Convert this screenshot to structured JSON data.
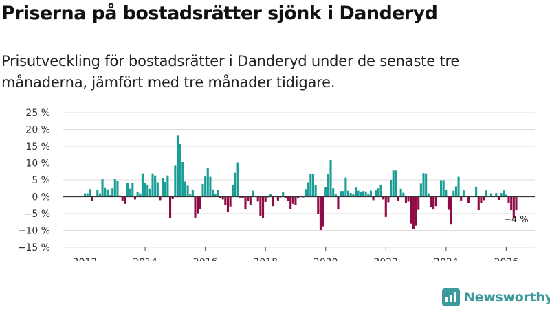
{
  "header": {
    "title": "Priserna på bostadsrätter sjönk i Danderyd",
    "subtitle": "Prisutveckling för bostadsrätter i Danderyd under de senaste tre månaderna, jämfört med tre månader tidigare."
  },
  "brand": {
    "name": "Newsworthy"
  },
  "colors": {
    "positive": "#1a9e96",
    "negative": "#8e0b45",
    "grid": "#dddddd",
    "zero": "#333333",
    "brand": "#3d9a9a"
  },
  "chart_data": {
    "type": "bar",
    "title": "Priserna på bostadsrätter sjönk i Danderyd",
    "xlabel": "",
    "ylabel": "",
    "ylim": [
      -15,
      25
    ],
    "y_ticks": [
      -15,
      -10,
      -5,
      0,
      5,
      10,
      15,
      20,
      25
    ],
    "y_tick_labels": [
      "−15 %",
      "−10 %",
      "−5 %",
      "0 %",
      "5 %",
      "10 %",
      "15 %",
      "20 %",
      "25 %"
    ],
    "x_ticks": [
      2012,
      2014,
      2016,
      2018,
      2020,
      2022,
      2024,
      2026
    ],
    "x_tick_labels": [
      "2012",
      "2014",
      "2016",
      "2018",
      "2020",
      "2022",
      "2024",
      "2026"
    ],
    "x_start": 2012.0,
    "x_step": 0.08333,
    "grid": true,
    "values": [
      1,
      1,
      2.3,
      -1.2,
      0.3,
      2.1,
      1,
      5.2,
      2.6,
      2.2,
      0.5,
      2.5,
      5.2,
      4.8,
      0.4,
      -1.1,
      -2.1,
      4,
      2.4,
      4,
      -0.8,
      1.5,
      1,
      6.9,
      4,
      3.6,
      2.4,
      6.9,
      6.3,
      4.3,
      -1,
      5.6,
      4.4,
      6.3,
      -6.4,
      -0.7,
      9.2,
      18.2,
      15.8,
      10.3,
      4.5,
      3.3,
      0.8,
      2,
      -6.2,
      -4.9,
      -3.6,
      3.8,
      6,
      8.7,
      5.9,
      2.2,
      0.8,
      2.1,
      -0.5,
      -0.8,
      -2.5,
      -4.6,
      -2.9,
      3.6,
      7.1,
      10.2,
      -0.3,
      -0.5,
      -3.8,
      -1.3,
      -2.4,
      1.8,
      0.1,
      -1.4,
      -5.6,
      -6.3,
      -1.5,
      -0.2,
      0.7,
      -2.8,
      0.2,
      -1.1,
      -0.2,
      1.5,
      -0.4,
      -1.2,
      -3.6,
      -2.1,
      -2.5,
      -0.4,
      -0.1,
      -0.2,
      2.3,
      4.3,
      6.8,
      6.8,
      3.5,
      -5.1,
      -9.9,
      -8.8,
      2.8,
      6.8,
      10.9,
      2.5,
      0.8,
      -3.8,
      1.7,
      1.7,
      5.7,
      1.8,
      1.1,
      0.8,
      2.7,
      1.8,
      1.5,
      1.7,
      1.6,
      0.7,
      1.8,
      -1,
      1.9,
      2.5,
      3.6,
      -0.8,
      -6,
      -1.6,
      5,
      7.8,
      7.8,
      -1.2,
      2.4,
      1.2,
      -1.8,
      -1.4,
      -8,
      -9.7,
      -8.6,
      -3.9,
      3.9,
      7,
      6.9,
      1,
      -3,
      -3.8,
      -2.8,
      0.2,
      4.9,
      4.9,
      2,
      -3.9,
      -8.1,
      1.8,
      3.1,
      5.9,
      -1.1,
      1.9,
      0.2,
      -1.8,
      0.2,
      0.2,
      3,
      -4,
      -1.8,
      -1,
      1.9,
      0.3,
      1,
      0.1,
      1.1,
      -0.9,
      1.1,
      1.9,
      0.6,
      -1.8,
      -4,
      -6.3,
      -4
    ],
    "annotations": [
      {
        "text": "−4 %",
        "label_for_index": 189
      }
    ]
  }
}
